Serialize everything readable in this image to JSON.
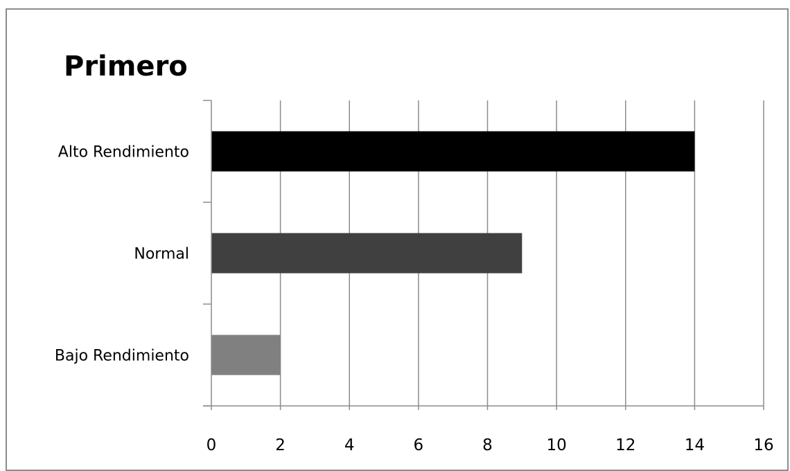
{
  "chart_data": {
    "type": "bar",
    "orientation": "horizontal",
    "title": "Primero",
    "categories": [
      "Alto Rendimiento",
      "Normal",
      "Bajo Rendimiento"
    ],
    "values": [
      14,
      9,
      2
    ],
    "bar_colors": [
      "#000000",
      "#404040",
      "#808080"
    ],
    "xlim": [
      0,
      16
    ],
    "x_ticks": [
      0,
      2,
      4,
      6,
      8,
      10,
      12,
      14,
      16
    ],
    "xlabel": "",
    "ylabel": "",
    "grid": "vertical",
    "legend": "none",
    "gridline_color": "#8c8c8c",
    "text_color": "#000000"
  }
}
